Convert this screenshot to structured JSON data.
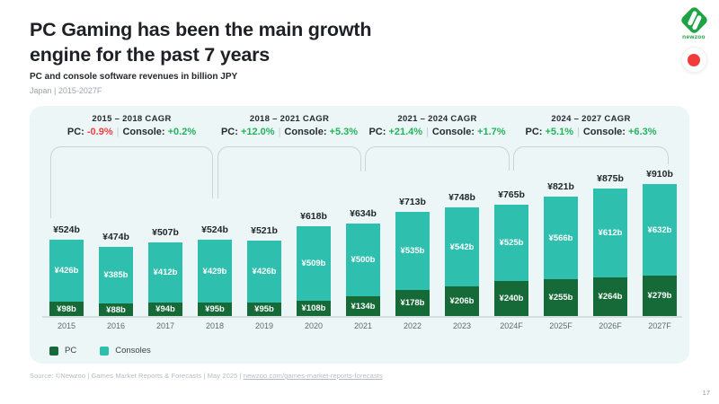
{
  "header": {
    "title_lines": [
      "PC Gaming has been the main growth",
      "engine for the past 7 years"
    ],
    "subtitle": "PC and console software revenues in billion JPY",
    "meta": "Japan | 2015-2027F"
  },
  "logo": {
    "brand": "newzoo",
    "brand_color": "#1ba441",
    "flag": "japan-flag",
    "flag_color": "#f43b3b"
  },
  "colors": {
    "pc": "#156a38",
    "consoles": "#2fbfae",
    "positive": "#22b35b",
    "negative": "#f43e3e",
    "panel_bg": "#ecf6f6"
  },
  "cagr_groups": [
    {
      "range": "2015 – 2018 CAGR",
      "pc_label": "PC:",
      "pc_value": "-0.9%",
      "pc_trend": "negative",
      "console_label": "Console:",
      "console_value": "+0.2%",
      "console_trend": "positive"
    },
    {
      "range": "2018 – 2021 CAGR",
      "pc_label": "PC:",
      "pc_value": "+12.0%",
      "pc_trend": "positive",
      "console_label": "Console:",
      "console_value": "+5.3%",
      "console_trend": "positive"
    },
    {
      "range": "2021 – 2024 CAGR",
      "pc_label": "PC:",
      "pc_value": "+21.4%",
      "pc_trend": "positive",
      "console_label": "Console:",
      "console_value": "+1.7%",
      "console_trend": "positive"
    },
    {
      "range": "2024 – 2027 CAGR",
      "pc_label": "PC:",
      "pc_value": "+5.1%",
      "pc_trend": "positive",
      "console_label": "Console:",
      "console_value": "+6.3%",
      "console_trend": "positive"
    }
  ],
  "chart_data": {
    "type": "bar",
    "stacked": true,
    "title": "PC and console software revenues in billion JPY",
    "region": "Japan",
    "unit": "billion JPY",
    "value_prefix": "¥",
    "value_suffix": "b",
    "categories": [
      "2015",
      "2016",
      "2017",
      "2018",
      "2019",
      "2020",
      "2021",
      "2022",
      "2023",
      "2024F",
      "2025F",
      "2026F",
      "2027F"
    ],
    "series": [
      {
        "name": "PC",
        "color": "#156a38",
        "values": [
          98,
          88,
          94,
          95,
          95,
          108,
          134,
          178,
          206,
          240,
          255,
          264,
          279
        ]
      },
      {
        "name": "Consoles",
        "color": "#2fbfae",
        "values": [
          426,
          385,
          412,
          429,
          426,
          509,
          500,
          535,
          542,
          525,
          566,
          612,
          632
        ]
      }
    ],
    "totals": [
      524,
      474,
      507,
      524,
      521,
      618,
      634,
      713,
      748,
      765,
      821,
      875,
      910
    ],
    "xlabel": "",
    "ylabel": "",
    "ylim": [
      0,
      960
    ],
    "grid": false,
    "legend_position": "bottom-left"
  },
  "legend": [
    {
      "label": "PC",
      "color": "#156a38"
    },
    {
      "label": "Consoles",
      "color": "#2fbfae"
    }
  ],
  "source": {
    "prefix": "Source: ©Newzoo | Games Market Reports & Forecasts | May 2025 | ",
    "link": "newzoo.com/games-market-reports-forecasts"
  },
  "page_number": "17"
}
